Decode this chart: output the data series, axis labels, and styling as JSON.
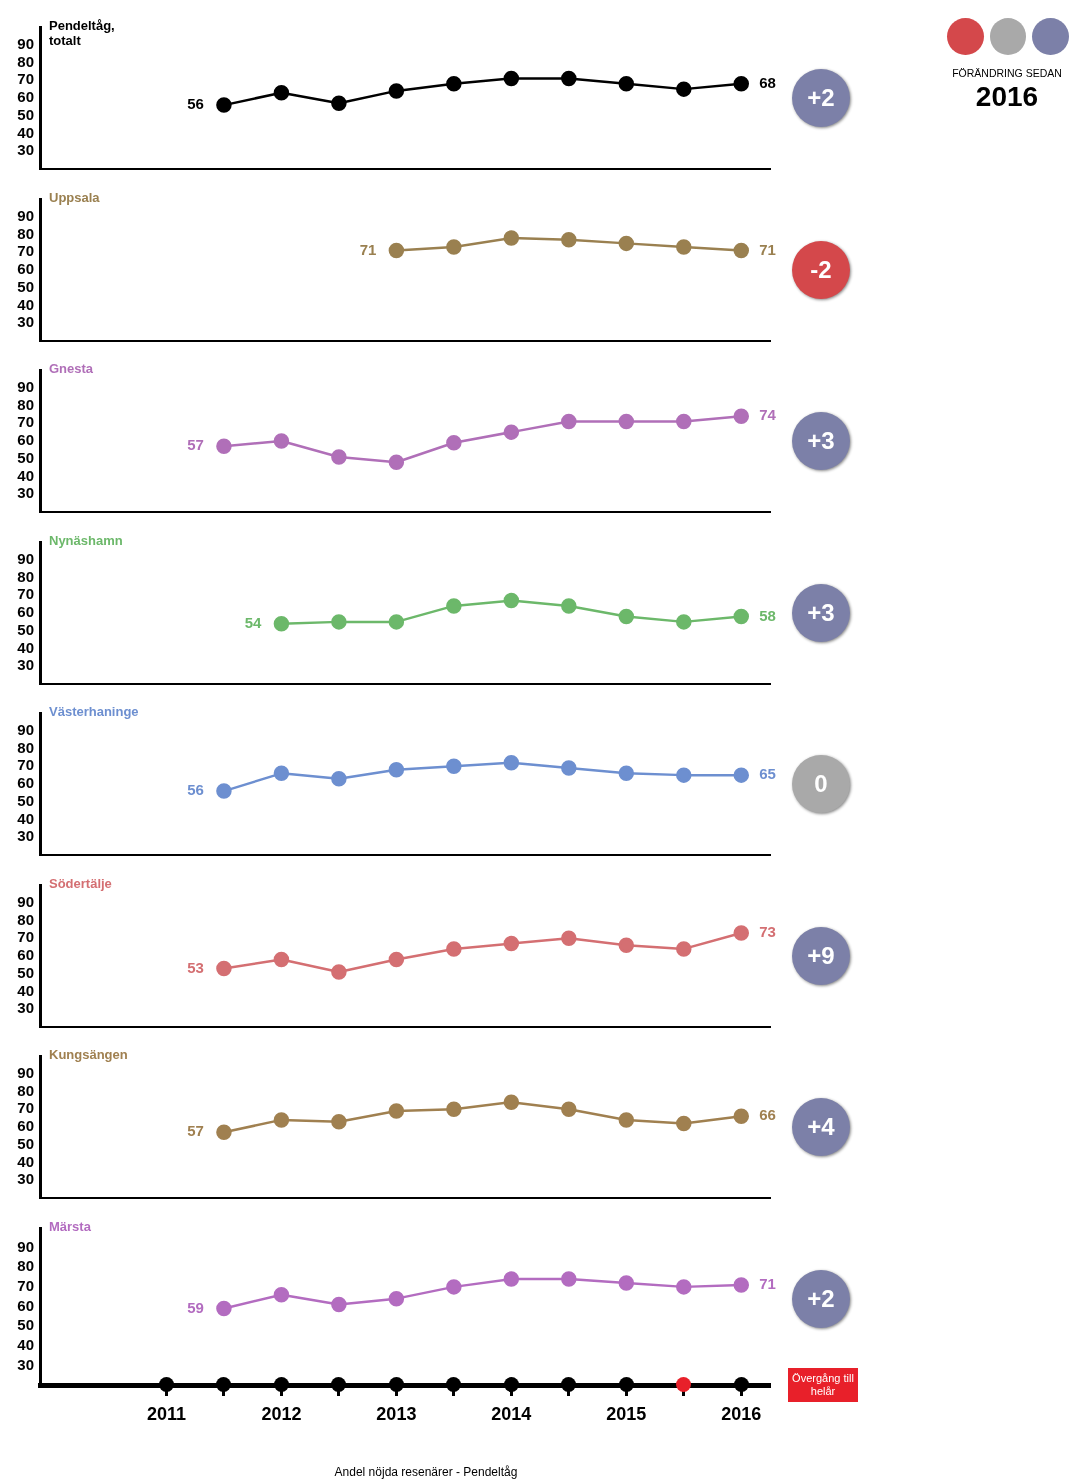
{
  "chart_data": [
    {
      "type": "line",
      "title": "Pendeltåg, totalt",
      "x": [
        2011.5,
        2012,
        2012.5,
        2013,
        2013.5,
        2014,
        2014.5,
        2015,
        2015.5,
        2016
      ],
      "series": [
        {
          "color": "#000000",
          "values": [
            56,
            63,
            57,
            64,
            68,
            71,
            71,
            68,
            65,
            68
          ],
          "value_labels": [
            "56",
            null,
            null,
            null,
            null,
            null,
            null,
            null,
            null,
            "68"
          ]
        }
      ],
      "xlim": [
        2009.9,
        2016.25
      ],
      "ylim": [
        20,
        100
      ],
      "yticks": [
        30,
        40,
        50,
        60,
        70,
        80,
        90
      ],
      "tick_labels": "y",
      "marker": "circle",
      "annotations": [
        "+2"
      ]
    },
    {
      "type": "line",
      "title": "Uppsala",
      "x": [
        2013,
        2013.5,
        2014,
        2014.5,
        2015,
        2015.5,
        2016
      ],
      "series": [
        {
          "color": "#9a8050",
          "values": [
            71,
            73,
            78,
            77,
            75,
            73,
            71
          ],
          "value_labels": [
            "71",
            null,
            null,
            null,
            null,
            null,
            "71"
          ]
        }
      ],
      "xlim": [
        2009.9,
        2016.25
      ],
      "ylim": [
        20,
        100
      ],
      "yticks": [
        30,
        40,
        50,
        60,
        70,
        80,
        90
      ],
      "tick_labels": "y",
      "marker": "circle",
      "annotations": [
        "-2"
      ]
    },
    {
      "type": "line",
      "title": "Gnesta",
      "x": [
        2011.5,
        2012,
        2012.5,
        2013,
        2013.5,
        2014,
        2014.5,
        2015,
        2015.5,
        2016
      ],
      "series": [
        {
          "color": "#b06fb8",
          "values": [
            57,
            60,
            51,
            48,
            59,
            65,
            71,
            71,
            71,
            74
          ],
          "value_labels": [
            "57",
            null,
            null,
            null,
            null,
            null,
            null,
            null,
            null,
            "74"
          ]
        }
      ],
      "xlim": [
        2009.9,
        2016.25
      ],
      "ylim": [
        20,
        100
      ],
      "yticks": [
        30,
        40,
        50,
        60,
        70,
        80,
        90
      ],
      "tick_labels": "y",
      "marker": "circle",
      "annotations": [
        "+3"
      ]
    },
    {
      "type": "line",
      "title": "Nynäshamn",
      "x": [
        2012,
        2012.5,
        2013,
        2013.5,
        2014,
        2014.5,
        2015,
        2015.5,
        2016
      ],
      "series": [
        {
          "color": "#6cb86a",
          "values": [
            54,
            55,
            55,
            64,
            67,
            64,
            58,
            55,
            58
          ],
          "value_labels": [
            "54",
            null,
            null,
            null,
            null,
            null,
            null,
            null,
            "58"
          ]
        }
      ],
      "xlim": [
        2009.9,
        2016.25
      ],
      "ylim": [
        20,
        100
      ],
      "yticks": [
        30,
        40,
        50,
        60,
        70,
        80,
        90
      ],
      "tick_labels": "y",
      "marker": "circle",
      "annotations": [
        "+3"
      ]
    },
    {
      "type": "line",
      "title": "Västerhaninge",
      "x": [
        2011.5,
        2012,
        2012.5,
        2013,
        2013.5,
        2014,
        2014.5,
        2015,
        2015.5,
        2016
      ],
      "series": [
        {
          "color": "#6d8fd0",
          "values": [
            56,
            66,
            63,
            68,
            70,
            72,
            69,
            66,
            65,
            65
          ],
          "value_labels": [
            "56",
            null,
            null,
            null,
            null,
            null,
            null,
            null,
            null,
            "65"
          ]
        }
      ],
      "xlim": [
        2009.9,
        2016.25
      ],
      "ylim": [
        20,
        100
      ],
      "yticks": [
        30,
        40,
        50,
        60,
        70,
        80,
        90
      ],
      "tick_labels": "y",
      "marker": "circle",
      "annotations": [
        "0"
      ]
    },
    {
      "type": "line",
      "title": "Södertälje",
      "x": [
        2011.5,
        2012,
        2012.5,
        2013,
        2013.5,
        2014,
        2014.5,
        2015,
        2015.5,
        2016
      ],
      "series": [
        {
          "color": "#d46f72",
          "values": [
            53,
            58,
            51,
            58,
            64,
            67,
            70,
            66,
            64,
            73
          ],
          "value_labels": [
            "53",
            null,
            null,
            null,
            null,
            null,
            null,
            null,
            null,
            "73"
          ]
        }
      ],
      "xlim": [
        2009.9,
        2016.25
      ],
      "ylim": [
        20,
        100
      ],
      "yticks": [
        30,
        40,
        50,
        60,
        70,
        80,
        90
      ],
      "tick_labels": "y",
      "marker": "circle",
      "annotations": [
        "+9"
      ]
    },
    {
      "type": "line",
      "title": "Kungsängen",
      "x": [
        2011.5,
        2012,
        2012.5,
        2013,
        2013.5,
        2014,
        2014.5,
        2015,
        2015.5,
        2016
      ],
      "series": [
        {
          "color": "#a08050",
          "values": [
            57,
            64,
            63,
            69,
            70,
            74,
            70,
            64,
            62,
            66
          ],
          "value_labels": [
            "57",
            null,
            null,
            null,
            null,
            null,
            null,
            null,
            null,
            "66"
          ]
        }
      ],
      "xlim": [
        2009.9,
        2016.25
      ],
      "ylim": [
        20,
        100
      ],
      "yticks": [
        30,
        40,
        50,
        60,
        70,
        80,
        90
      ],
      "tick_labels": "y",
      "marker": "circle",
      "annotations": [
        "+4"
      ]
    },
    {
      "type": "line",
      "title": "Märsta",
      "x": [
        2011.5,
        2012,
        2012.5,
        2013,
        2013.5,
        2014,
        2014.5,
        2015,
        2015.5,
        2016
      ],
      "series": [
        {
          "color": "#b36cc0",
          "values": [
            59,
            66,
            61,
            64,
            70,
            74,
            74,
            72,
            70,
            71
          ],
          "value_labels": [
            "59",
            null,
            null,
            null,
            null,
            null,
            null,
            null,
            null,
            "71"
          ]
        }
      ],
      "xlim": [
        2009.9,
        2016.25
      ],
      "xticks": [
        2011,
        {
          "value": 2011.5,
          "label": null
        },
        2012,
        {
          "value": 2012.5,
          "label": null
        },
        2013,
        {
          "value": 2013.5,
          "label": null
        },
        2014,
        {
          "value": 2014.5,
          "label": null
        },
        2015,
        {
          "value": 2015.5,
          "label": null
        },
        2016
      ],
      "ylim": [
        20,
        100
      ],
      "yticks": [
        30,
        40,
        50,
        60,
        70,
        80,
        90
      ],
      "marker": "circle",
      "annotations": [
        "+2",
        "Andel nöjda resenärer - Pendeltåg",
        "Övergång till helår"
      ]
    },
    {
      "type": "other",
      "annotations": [
        "FÖRÄNDRING SEDAN",
        "2016"
      ]
    }
  ]
}
